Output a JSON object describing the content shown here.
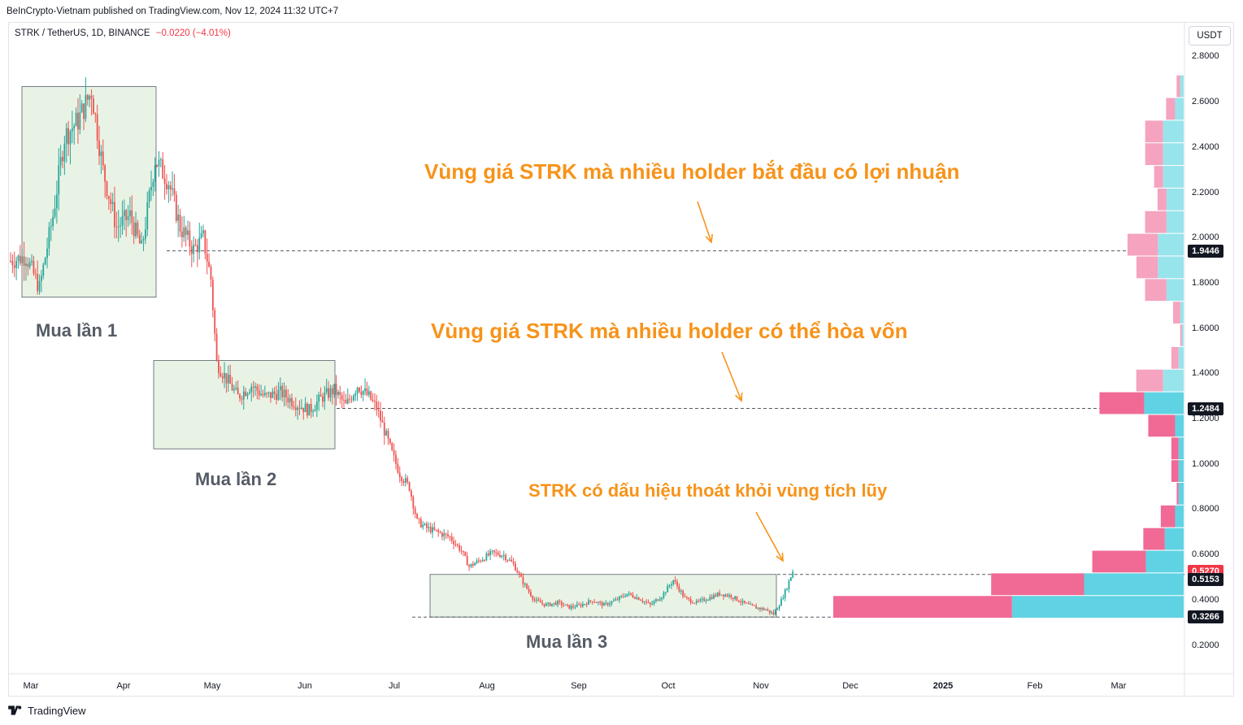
{
  "header": {
    "published": "BeInCrypto-Vietnam published on TradingView.com, Nov 12, 2024 11:32 UTC+7",
    "symbol": "STRK / TetherUS, 1D, BINANCE",
    "change": "−0.0220 (−4.01%)"
  },
  "currency_label": "USDT",
  "footer": {
    "brand": "TradingView"
  },
  "colors": {
    "up": "#26a69a",
    "down": "#ef5350",
    "orange": "#f7931a",
    "box": "#e9f3e5",
    "vp_up": "#5fd3e3",
    "vp_down": "#f06a95"
  },
  "annotations": {
    "profit_zone": "Vùng giá STRK mà nhiều holder bắt đầu có lợi nhuận",
    "breakeven_zone": "Vùng giá STRK mà nhiều holder có thể hòa vốn",
    "breakout": "STRK có dấu hiệu thoát khỏi vùng tích lũy",
    "buy1": "Mua lần 1",
    "buy2": "Mua lần 2",
    "buy3": "Mua lần 3"
  },
  "price_tags": [
    {
      "label": "1.9446",
      "color": "#131722"
    },
    {
      "label": "1.2484",
      "color": "#131722"
    },
    {
      "label": "0.5270",
      "color": "#f23645"
    },
    {
      "label": "0.5153",
      "color": "#131722"
    },
    {
      "label": "0.3266",
      "color": "#131722"
    }
  ],
  "chart_data": {
    "type": "candlestick",
    "y_axis_ticks": [
      "2.8000",
      "2.6000",
      "2.4000",
      "2.2000",
      "2.0000",
      "1.8000",
      "1.6000",
      "1.4000",
      "1.2000",
      "1.0000",
      "0.8000",
      "0.6000",
      "0.4000",
      "0.2000"
    ],
    "x_axis_ticks": [
      "Mar",
      "Apr",
      "May",
      "Jun",
      "Jul",
      "Aug",
      "Sep",
      "Oct",
      "Nov",
      "Dec",
      "2025",
      "Feb",
      "Mar"
    ],
    "ylim": [
      0.1,
      2.85
    ],
    "horizontal_levels": [
      1.9446,
      1.2484,
      0.5153,
      0.3266
    ],
    "last_price": 0.527,
    "consolidation_boxes": [
      {
        "label": "Mua lần 1",
        "price_high": 2.67,
        "price_low": 1.74
      },
      {
        "label": "Mua lần 2",
        "price_high": 1.46,
        "price_low": 1.07
      },
      {
        "label": "Mua lần 3",
        "price_high": 0.515,
        "price_low": 0.327
      }
    ],
    "price_path": [
      [
        0,
        1.9
      ],
      [
        8,
        1.92
      ],
      [
        15,
        1.78
      ],
      [
        22,
        2.1
      ],
      [
        28,
        2.45
      ],
      [
        35,
        2.52
      ],
      [
        42,
        2.65
      ],
      [
        48,
        2.3
      ],
      [
        55,
        2.05
      ],
      [
        62,
        2.1
      ],
      [
        68,
        1.95
      ],
      [
        75,
        2.35
      ],
      [
        82,
        2.25
      ],
      [
        88,
        2.05
      ],
      [
        95,
        1.95
      ],
      [
        100,
        2.0
      ],
      [
        104,
        1.82
      ],
      [
        107,
        1.45
      ],
      [
        112,
        1.38
      ],
      [
        118,
        1.3
      ],
      [
        125,
        1.35
      ],
      [
        132,
        1.3
      ],
      [
        140,
        1.32
      ],
      [
        148,
        1.27
      ],
      [
        155,
        1.24
      ],
      [
        162,
        1.3
      ],
      [
        168,
        1.33
      ],
      [
        174,
        1.26
      ],
      [
        180,
        1.35
      ],
      [
        186,
        1.3
      ],
      [
        190,
        1.25
      ],
      [
        194,
        1.15
      ],
      [
        198,
        1.05
      ],
      [
        202,
        0.96
      ],
      [
        207,
        0.9
      ],
      [
        211,
        0.75
      ],
      [
        216,
        0.72
      ],
      [
        222,
        0.7
      ],
      [
        228,
        0.68
      ],
      [
        234,
        0.62
      ],
      [
        238,
        0.55
      ],
      [
        244,
        0.58
      ],
      [
        250,
        0.61
      ],
      [
        256,
        0.6
      ],
      [
        261,
        0.56
      ],
      [
        266,
        0.48
      ],
      [
        272,
        0.4
      ],
      [
        278,
        0.38
      ],
      [
        284,
        0.39
      ],
      [
        290,
        0.37
      ],
      [
        296,
        0.38
      ],
      [
        302,
        0.4
      ],
      [
        308,
        0.38
      ],
      [
        314,
        0.4
      ],
      [
        320,
        0.43
      ],
      [
        326,
        0.41
      ],
      [
        332,
        0.38
      ],
      [
        338,
        0.42
      ],
      [
        344,
        0.49
      ],
      [
        350,
        0.41
      ],
      [
        356,
        0.39
      ],
      [
        362,
        0.41
      ],
      [
        368,
        0.43
      ],
      [
        374,
        0.42
      ],
      [
        380,
        0.39
      ],
      [
        386,
        0.37
      ],
      [
        392,
        0.36
      ],
      [
        396,
        0.34
      ],
      [
        400,
        0.4
      ],
      [
        403,
        0.46
      ],
      [
        406,
        0.53
      ]
    ],
    "volume_profile": [
      {
        "price": 2.67,
        "up": 0.02,
        "down": 0.02
      },
      {
        "price": 2.57,
        "up": 0.05,
        "down": 0.05
      },
      {
        "price": 2.47,
        "up": 0.12,
        "down": 0.1
      },
      {
        "price": 2.37,
        "up": 0.12,
        "down": 0.1
      },
      {
        "price": 2.27,
        "up": 0.12,
        "down": 0.05
      },
      {
        "price": 2.17,
        "up": 0.1,
        "down": 0.05
      },
      {
        "price": 2.07,
        "up": 0.1,
        "down": 0.12
      },
      {
        "price": 1.97,
        "up": 0.15,
        "down": 0.17
      },
      {
        "price": 1.87,
        "up": 0.15,
        "down": 0.12
      },
      {
        "price": 1.77,
        "up": 0.1,
        "down": 0.12
      },
      {
        "price": 1.67,
        "up": 0.02,
        "down": 0.04
      },
      {
        "price": 1.57,
        "up": 0.01,
        "down": 0.01
      },
      {
        "price": 1.47,
        "up": 0.03,
        "down": 0.04
      },
      {
        "price": 1.37,
        "up": 0.12,
        "down": 0.15
      },
      {
        "price": 1.27,
        "up": 0.23,
        "down": 0.25
      },
      {
        "price": 1.17,
        "up": 0.05,
        "down": 0.15
      },
      {
        "price": 1.07,
        "up": 0.03,
        "down": 0.04
      },
      {
        "price": 0.97,
        "up": 0.03,
        "down": 0.04
      },
      {
        "price": 0.87,
        "up": 0.03,
        "down": 0.01
      },
      {
        "price": 0.77,
        "up": 0.05,
        "down": 0.08
      },
      {
        "price": 0.67,
        "up": 0.11,
        "down": 0.12
      },
      {
        "price": 0.57,
        "up": 0.22,
        "down": 0.3
      },
      {
        "price": 0.47,
        "up": 0.58,
        "down": 0.52
      },
      {
        "price": 0.37,
        "up": 1.0,
        "down": 1.0
      }
    ]
  }
}
